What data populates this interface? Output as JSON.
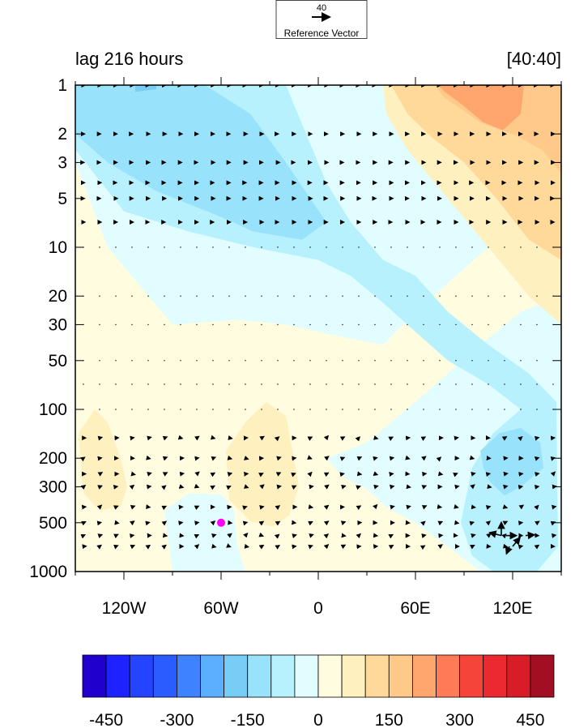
{
  "chart_data": {
    "type": "contour+vector",
    "title_left": "lag 216 hours",
    "title_right": "[40:40]",
    "reference_vector": {
      "magnitude": "40",
      "label": "Reference Vector"
    },
    "x_axis": {
      "range_deg": [
        -150,
        150
      ],
      "ticks": [
        {
          "value": -120,
          "label": "120W"
        },
        {
          "value": -60,
          "label": "60W"
        },
        {
          "value": 0,
          "label": "0"
        },
        {
          "value": 60,
          "label": "60E"
        },
        {
          "value": 120,
          "label": "120E"
        }
      ],
      "minor_ticks": [
        -150,
        -90,
        -30,
        30,
        90,
        150
      ]
    },
    "y_axis": {
      "scale": "log",
      "range": [
        1000,
        1
      ],
      "ticks": [
        {
          "value": 1,
          "label": "1"
        },
        {
          "value": 2,
          "label": "2"
        },
        {
          "value": 3,
          "label": "3"
        },
        {
          "value": 5,
          "label": "5"
        },
        {
          "value": 10,
          "label": "10"
        },
        {
          "value": 20,
          "label": "20"
        },
        {
          "value": 30,
          "label": "30"
        },
        {
          "value": 50,
          "label": "50"
        },
        {
          "value": 100,
          "label": "100"
        },
        {
          "value": 200,
          "label": "200"
        },
        {
          "value": 300,
          "label": "300"
        },
        {
          "value": 500,
          "label": "500"
        },
        {
          "value": 1000,
          "label": "1000"
        }
      ]
    },
    "colorbar": {
      "colors": [
        "#2000cc",
        "#1e22ff",
        "#2544ff",
        "#2b5cff",
        "#3f82ff",
        "#5caeff",
        "#77cdf6",
        "#99e2fb",
        "#b7f1fe",
        "#e2fdff",
        "#fffce0",
        "#fff0c0",
        "#ffd99a",
        "#ffc98a",
        "#ffa56e",
        "#ff7b56",
        "#f5443a",
        "#ec2830",
        "#d81c28",
        "#a30f22"
      ],
      "labels": [
        {
          "value": -450,
          "label": "-450"
        },
        {
          "value": -300,
          "label": "-300"
        },
        {
          "value": -150,
          "label": "-150"
        },
        {
          "value": 0,
          "label": "0"
        },
        {
          "value": 150,
          "label": "150"
        },
        {
          "value": 300,
          "label": "300"
        },
        {
          "value": 450,
          "label": "450"
        }
      ],
      "interval": 50,
      "range": [
        -500,
        500
      ]
    },
    "contour_regions": [
      {
        "level": "-50..0",
        "color": "#e2fdff",
        "polygon": [
          [
            -13,
            1
          ],
          [
            150,
            1
          ],
          [
            150,
            5
          ],
          [
            105,
            10
          ],
          [
            60,
            25
          ],
          [
            40,
            40
          ],
          [
            10,
            35
          ],
          [
            -20,
            30
          ],
          [
            -50,
            28
          ],
          [
            -90,
            30
          ],
          [
            -130,
            10
          ],
          [
            -150,
            3
          ],
          [
            -150,
            1
          ]
        ]
      },
      {
        "level": "-50..0 lower",
        "color": "#e2fdff",
        "polygon": [
          [
            5,
            200
          ],
          [
            30,
            160
          ],
          [
            60,
            90
          ],
          [
            100,
            40
          ],
          [
            125,
            25
          ],
          [
            150,
            20
          ],
          [
            150,
            1000
          ],
          [
            100,
            1000
          ],
          [
            80,
            700
          ],
          [
            60,
            500
          ],
          [
            42,
            400
          ],
          [
            30,
            310
          ],
          [
            15,
            260
          ]
        ]
      },
      {
        "level": "-100..-50",
        "color": "#b7f1fe",
        "polygon": [
          [
            -150,
            1
          ],
          [
            -20,
            1
          ],
          [
            5,
            4
          ],
          [
            20,
            7
          ],
          [
            40,
            12
          ],
          [
            60,
            15
          ],
          [
            80,
            25
          ],
          [
            105,
            40
          ],
          [
            130,
            60
          ],
          [
            147,
            90
          ],
          [
            148,
            700
          ],
          [
            135,
            1000
          ],
          [
            108,
            1000
          ],
          [
            95,
            800
          ],
          [
            88,
            500
          ],
          [
            95,
            230
          ],
          [
            108,
            140
          ],
          [
            125,
            100
          ],
          [
            105,
            70
          ],
          [
            80,
            50
          ],
          [
            55,
            30
          ],
          [
            40,
            22
          ],
          [
            20,
            15
          ],
          [
            0,
            12
          ],
          [
            -40,
            10
          ],
          [
            -80,
            8
          ],
          [
            -120,
            6
          ],
          [
            -150,
            2.5
          ]
        ]
      },
      {
        "level": "-150..-100",
        "color": "#99e2fb",
        "polygon": [
          [
            -150,
            1
          ],
          [
            -70,
            1
          ],
          [
            -42,
            1.5
          ],
          [
            -20,
            3
          ],
          [
            -5,
            5
          ],
          [
            5,
            7
          ],
          [
            -10,
            9
          ],
          [
            -40,
            8
          ],
          [
            -60,
            6.5
          ],
          [
            -100,
            4.5
          ],
          [
            -130,
            3
          ],
          [
            -150,
            2
          ]
        ]
      },
      {
        "level": "-150..-100 lower",
        "color": "#99e2fb",
        "polygon": [
          [
            100,
            180
          ],
          [
            112,
            140
          ],
          [
            125,
            130
          ],
          [
            137,
            160
          ],
          [
            139,
            230
          ],
          [
            125,
            300
          ],
          [
            115,
            340
          ],
          [
            106,
            280
          ],
          [
            102,
            230
          ]
        ]
      },
      {
        "level": "-200..-150",
        "color": "#77cdf6",
        "polygon": [
          [
            -113,
            1
          ],
          [
            -100,
            1
          ],
          [
            -100,
            1.06
          ],
          [
            -113,
            1.1
          ]
        ]
      },
      {
        "level": "-50..0 west",
        "color": "#e2fdff",
        "polygon": [
          [
            -95,
            420
          ],
          [
            -80,
            330
          ],
          [
            -60,
            335
          ],
          [
            -52,
            420
          ],
          [
            -50,
            700
          ],
          [
            -45,
            1000
          ],
          [
            -90,
            1000
          ]
        ]
      },
      {
        "level": "0..50 a",
        "color": "#fffce0",
        "polygon": [
          [
            -150,
            10
          ],
          [
            -120,
            25
          ],
          [
            -90,
            45
          ],
          [
            -60,
            35
          ],
          [
            -25,
            50
          ],
          [
            0,
            80
          ],
          [
            20,
            100
          ],
          [
            22,
            140
          ],
          [
            10,
            190
          ],
          [
            -10,
            250
          ],
          [
            -30,
            290
          ],
          [
            -60,
            310
          ],
          [
            -100,
            320
          ],
          [
            -150,
            330
          ]
        ]
      },
      {
        "level": "50..100 b",
        "color": "#fff0c0",
        "polygon": [
          [
            -148,
            140
          ],
          [
            -138,
            100
          ],
          [
            -130,
            120
          ],
          [
            -122,
            200
          ],
          [
            -118,
            300
          ],
          [
            -122,
            400
          ],
          [
            -135,
            420
          ],
          [
            -145,
            330
          ]
        ]
      },
      {
        "level": "50..100 c",
        "color": "#fff0c0",
        "polygon": [
          [
            -57,
            180
          ],
          [
            -45,
            120
          ],
          [
            -32,
            90
          ],
          [
            -20,
            110
          ],
          [
            -15,
            200
          ],
          [
            -12,
            300
          ],
          [
            -18,
            450
          ],
          [
            -28,
            530
          ],
          [
            -42,
            490
          ],
          [
            -55,
            360
          ]
        ]
      },
      {
        "level": "50..100 top",
        "color": "#fff0c0",
        "polygon": [
          [
            40,
            1
          ],
          [
            150,
            1
          ],
          [
            150,
            30
          ],
          [
            130,
            20
          ],
          [
            105,
            10
          ],
          [
            80,
            5
          ],
          [
            55,
            2.5
          ],
          [
            42,
            1.5
          ]
        ]
      },
      {
        "level": "100..150",
        "color": "#ffd99a",
        "polygon": [
          [
            45,
            1
          ],
          [
            150,
            1
          ],
          [
            150,
            12
          ],
          [
            130,
            9
          ],
          [
            110,
            5
          ],
          [
            90,
            3
          ],
          [
            70,
            2.1
          ],
          [
            55,
            1.5
          ]
        ]
      },
      {
        "level": "150..200",
        "color": "#ffc98a",
        "polygon": [
          [
            72,
            1
          ],
          [
            150,
            1
          ],
          [
            150,
            3.5
          ],
          [
            138,
            2.5
          ],
          [
            120,
            2
          ],
          [
            100,
            1.7
          ],
          [
            88,
            1.4
          ],
          [
            78,
            1.2
          ]
        ]
      },
      {
        "level": "200..250",
        "color": "#ffa56e",
        "polygon": [
          [
            74,
            1
          ],
          [
            127,
            1
          ],
          [
            125,
            1.5
          ],
          [
            114,
            1.9
          ],
          [
            102,
            1.7
          ],
          [
            88,
            1.3
          ],
          [
            78,
            1.1
          ]
        ]
      }
    ],
    "vectors": {
      "reference_magnitude": 40,
      "pressure_levels": [
        1,
        2,
        3,
        4,
        5,
        7,
        10,
        20,
        30,
        50,
        70,
        100,
        150,
        200,
        250,
        300,
        400,
        500,
        600,
        700
      ],
      "longitude_step_deg": 10,
      "strong_anomalies": [
        {
          "lon": 113,
          "p": 600,
          "u": -16,
          "v": 4
        },
        {
          "lon": 113,
          "p": 600,
          "u": 0,
          "v": 18
        },
        {
          "lon": 116,
          "p": 600,
          "u": 14,
          "v": 0
        },
        {
          "lon": 120,
          "p": 700,
          "u": 10,
          "v": 12
        },
        {
          "lon": 118,
          "p": 700,
          "u": -4,
          "v": -10
        },
        {
          "lon": 128,
          "p": 600,
          "u": 12,
          "v": 1
        }
      ]
    },
    "marker": {
      "lon": -60,
      "p": 500,
      "color": "#ff00ff"
    }
  }
}
